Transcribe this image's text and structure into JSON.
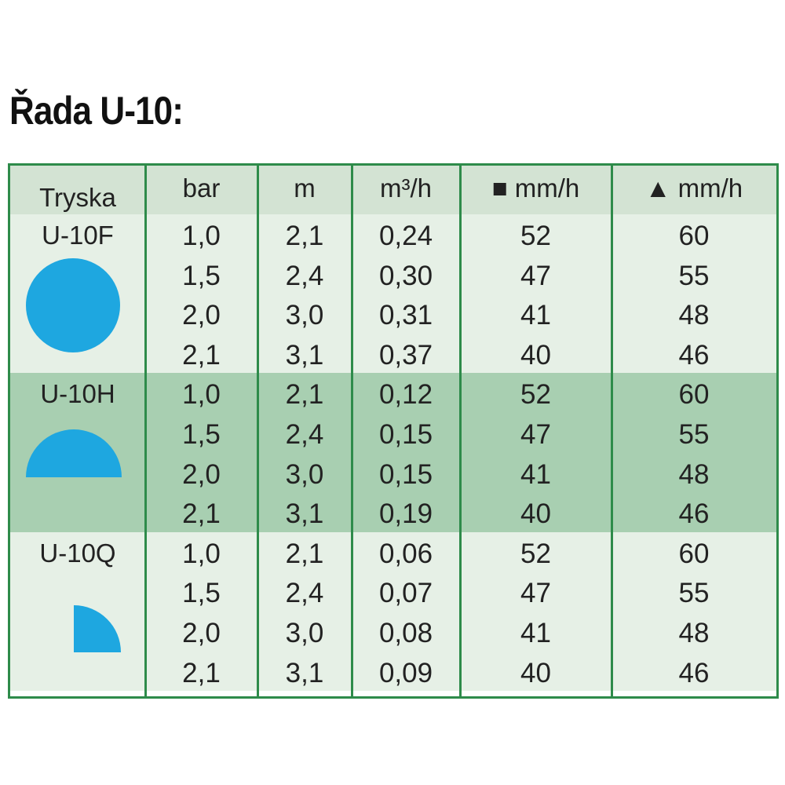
{
  "title": "Řada U-10:",
  "table": {
    "header": [
      "Tryska",
      "bar",
      "m",
      "m³/h",
      "■ mm/h",
      "▲ mm/h"
    ],
    "groups": [
      {
        "nozzle": "U-10F",
        "rows": [
          [
            "1,0",
            "2,1",
            "0,24",
            "52",
            "60"
          ],
          [
            "1,5",
            "2,4",
            "0,30",
            "47",
            "55"
          ],
          [
            "2,0",
            "3,0",
            "0,31",
            "41",
            "48"
          ],
          [
            "2,1",
            "3,1",
            "0,37",
            "40",
            "46"
          ]
        ]
      },
      {
        "nozzle": "U-10H",
        "rows": [
          [
            "1,0",
            "2,1",
            "0,12",
            "52",
            "60"
          ],
          [
            "1,5",
            "2,4",
            "0,15",
            "47",
            "55"
          ],
          [
            "2,0",
            "3,0",
            "0,15",
            "41",
            "48"
          ],
          [
            "2,1",
            "3,1",
            "0,19",
            "40",
            "46"
          ]
        ]
      },
      {
        "nozzle": "U-10Q",
        "rows": [
          [
            "1,0",
            "2,1",
            "0,06",
            "52",
            "60"
          ],
          [
            "1,5",
            "2,4",
            "0,07",
            "47",
            "55"
          ],
          [
            "2,0",
            "3,0",
            "0,08",
            "41",
            "48"
          ],
          [
            "2,1",
            "3,1",
            "0,09",
            "40",
            "46"
          ]
        ]
      }
    ]
  }
}
